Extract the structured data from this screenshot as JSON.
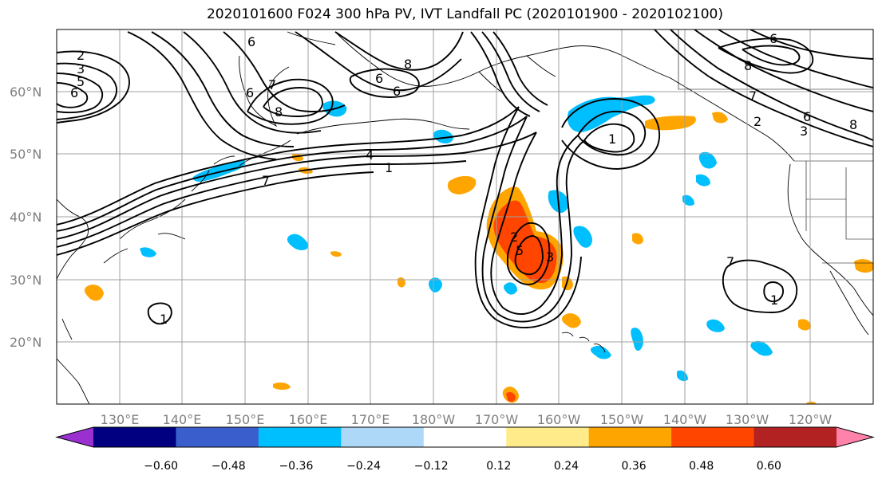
{
  "title": "2020101600 F024 300 hPa PV, IVT Landfall PC (2020101900 - 2020102100)",
  "lat_labels": [
    "60°N",
    "50°N",
    "40°N",
    "30°N",
    "20°N"
  ],
  "lon_labels": [
    "130°E",
    "140°E",
    "150°E",
    "160°E",
    "170°E",
    "180°W",
    "170°W",
    "160°W",
    "150°W",
    "140°W",
    "130°W",
    "120°W"
  ],
  "colorbar": {
    "colors": [
      "#9b30d0",
      "#000080",
      "#3a5fcd",
      "#00bfff",
      "#add8f7",
      "#ffffff",
      "#ffeb8a",
      "#ffa500",
      "#ff4500",
      "#b22222",
      "#ff82ab"
    ],
    "tick_labels": [
      "−0.60",
      "−0.48",
      "−0.36",
      "−0.24",
      "−0.12",
      "0.12",
      "0.24",
      "0.36",
      "0.48",
      "0.60"
    ]
  },
  "contour_labels": [
    "2",
    "3",
    "5",
    "6",
    "6",
    "6",
    "6",
    "6",
    "7",
    "8",
    "8",
    "4",
    "1",
    "7",
    "2",
    "3",
    "5",
    "6",
    "7",
    "8",
    "1",
    "2",
    "6",
    "8",
    "1",
    "3",
    "1",
    "7"
  ]
}
